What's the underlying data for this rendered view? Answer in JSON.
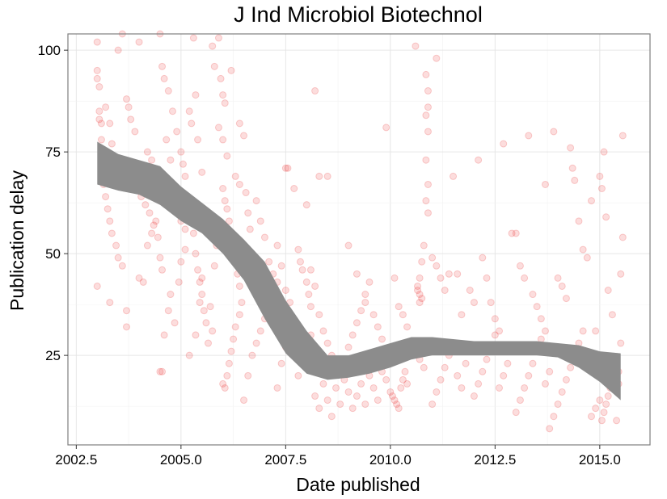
{
  "chart_data": {
    "type": "scatter",
    "title": "J Ind Microbiol Biotechnol",
    "xlabel": "Date published",
    "ylabel": "Publication delay",
    "xlim": [
      2002.3,
      2016.2
    ],
    "ylim": [
      3,
      104
    ],
    "x_ticks": [
      2002.5,
      2005.0,
      2007.5,
      2010.0,
      2012.5,
      2015.0
    ],
    "x_tick_labels": [
      "2002.5",
      "2005.0",
      "2007.5",
      "2010.0",
      "2012.5",
      "2015.0"
    ],
    "y_ticks": [
      25,
      50,
      75,
      100
    ],
    "y_tick_labels": [
      "25",
      "50",
      "75",
      "100"
    ],
    "grid": true,
    "colors": {
      "points": "#e8191b",
      "smooth_band": "#8c8c8c"
    },
    "point_alpha": 0.15,
    "points": [
      [
        2003.0,
        102
      ],
      [
        2003.0,
        95
      ],
      [
        2003.0,
        93
      ],
      [
        2003.05,
        91
      ],
      [
        2003.05,
        85
      ],
      [
        2003.05,
        83
      ],
      [
        2003.1,
        82
      ],
      [
        2003.1,
        78
      ],
      [
        2003.2,
        86
      ],
      [
        2003.3,
        82
      ],
      [
        2003.35,
        77
      ],
      [
        2003.4,
        71
      ],
      [
        2003.5,
        100
      ],
      [
        2003.6,
        104
      ],
      [
        2003.7,
        88
      ],
      [
        2003.75,
        86
      ],
      [
        2003.8,
        83
      ],
      [
        2003.9,
        80
      ],
      [
        2003.1,
        72
      ],
      [
        2003.15,
        67
      ],
      [
        2003.2,
        64
      ],
      [
        2003.25,
        61
      ],
      [
        2003.3,
        58
      ],
      [
        2003.35,
        55
      ],
      [
        2003.45,
        52
      ],
      [
        2003.5,
        49
      ],
      [
        2003.6,
        47
      ],
      [
        2003.0,
        42
      ],
      [
        2003.3,
        38
      ],
      [
        2003.7,
        36
      ],
      [
        2003.7,
        32
      ],
      [
        2004.0,
        44
      ],
      [
        2004.1,
        43
      ],
      [
        2004.2,
        52
      ],
      [
        2004.3,
        55
      ],
      [
        2004.4,
        58
      ],
      [
        2003.85,
        69
      ],
      [
        2003.95,
        66
      ],
      [
        2004.05,
        64
      ],
      [
        2004.15,
        62
      ],
      [
        2004.25,
        60
      ],
      [
        2004.35,
        57
      ],
      [
        2004.45,
        54
      ],
      [
        2004.5,
        49
      ],
      [
        2004.55,
        46
      ],
      [
        2004.0,
        102
      ],
      [
        2004.5,
        104
      ],
      [
        2004.55,
        96
      ],
      [
        2004.6,
        93
      ],
      [
        2004.7,
        90
      ],
      [
        2004.8,
        85
      ],
      [
        2004.9,
        80
      ],
      [
        2004.65,
        78
      ],
      [
        2004.75,
        73
      ],
      [
        2004.2,
        75
      ],
      [
        2004.3,
        73
      ],
      [
        2004.45,
        70
      ],
      [
        2004.6,
        68
      ],
      [
        2004.7,
        65
      ],
      [
        2004.8,
        63
      ],
      [
        2004.9,
        60
      ],
      [
        2005.0,
        58
      ],
      [
        2005.1,
        56
      ],
      [
        2004.5,
        21
      ],
      [
        2004.55,
        21
      ],
      [
        2004.6,
        30
      ],
      [
        2004.7,
        36
      ],
      [
        2004.75,
        40
      ],
      [
        2004.85,
        33
      ],
      [
        2004.95,
        43
      ],
      [
        2005.0,
        48
      ],
      [
        2005.1,
        51
      ],
      [
        2005.0,
        75
      ],
      [
        2005.05,
        72
      ],
      [
        2005.1,
        69
      ],
      [
        2005.2,
        85
      ],
      [
        2005.25,
        82
      ],
      [
        2005.3,
        103
      ],
      [
        2005.35,
        89
      ],
      [
        2005.4,
        78
      ],
      [
        2005.5,
        70
      ],
      [
        2005.2,
        62
      ],
      [
        2005.3,
        55
      ],
      [
        2005.35,
        50
      ],
      [
        2005.4,
        46
      ],
      [
        2005.45,
        43
      ],
      [
        2005.5,
        40
      ],
      [
        2005.55,
        36
      ],
      [
        2005.6,
        33
      ],
      [
        2005.65,
        28
      ],
      [
        2005.2,
        25
      ],
      [
        2005.35,
        30
      ],
      [
        2005.45,
        38
      ],
      [
        2005.5,
        44
      ],
      [
        2005.7,
        37
      ],
      [
        2005.75,
        31
      ],
      [
        2005.8,
        47
      ],
      [
        2005.85,
        52
      ],
      [
        2005.9,
        57
      ],
      [
        2005.75,
        101
      ],
      [
        2005.8,
        96
      ],
      [
        2005.9,
        103
      ],
      [
        2005.95,
        93
      ],
      [
        2006.0,
        89
      ],
      [
        2006.05,
        87
      ],
      [
        2005.9,
        81
      ],
      [
        2006.0,
        78
      ],
      [
        2006.1,
        74
      ],
      [
        2006.0,
        66
      ],
      [
        2006.05,
        63
      ],
      [
        2006.1,
        61
      ],
      [
        2006.15,
        58
      ],
      [
        2006.2,
        55
      ],
      [
        2006.25,
        52
      ],
      [
        2006.3,
        48
      ],
      [
        2006.35,
        45
      ],
      [
        2006.4,
        42
      ],
      [
        2006.0,
        18
      ],
      [
        2006.05,
        17
      ],
      [
        2006.1,
        20
      ],
      [
        2006.15,
        23
      ],
      [
        2006.2,
        26
      ],
      [
        2006.25,
        29
      ],
      [
        2006.3,
        32
      ],
      [
        2006.4,
        35
      ],
      [
        2006.45,
        38
      ],
      [
        2006.2,
        95
      ],
      [
        2006.4,
        82
      ],
      [
        2006.5,
        79
      ],
      [
        2006.3,
        69
      ],
      [
        2006.4,
        67
      ],
      [
        2006.55,
        65
      ],
      [
        2006.6,
        60
      ],
      [
        2006.65,
        56
      ],
      [
        2006.7,
        50
      ],
      [
        2006.5,
        14
      ],
      [
        2006.6,
        20
      ],
      [
        2006.7,
        25
      ],
      [
        2006.8,
        28
      ],
      [
        2006.9,
        31
      ],
      [
        2007.0,
        34
      ],
      [
        2007.1,
        37
      ],
      [
        2007.2,
        40
      ],
      [
        2007.3,
        43
      ],
      [
        2006.8,
        63
      ],
      [
        2006.9,
        58
      ],
      [
        2007.0,
        54
      ],
      [
        2007.1,
        48
      ],
      [
        2007.2,
        45
      ],
      [
        2007.3,
        52
      ],
      [
        2007.4,
        47
      ],
      [
        2007.5,
        41
      ],
      [
        2007.6,
        38
      ],
      [
        2007.5,
        71
      ],
      [
        2007.55,
        71
      ],
      [
        2007.7,
        66
      ],
      [
        2007.8,
        51
      ],
      [
        2007.85,
        48
      ],
      [
        2007.9,
        46
      ],
      [
        2008.0,
        43
      ],
      [
        2008.05,
        40
      ],
      [
        2008.1,
        37
      ],
      [
        2007.3,
        17
      ],
      [
        2007.4,
        23
      ],
      [
        2007.5,
        27
      ],
      [
        2007.6,
        30
      ],
      [
        2007.7,
        33
      ],
      [
        2007.8,
        20
      ],
      [
        2007.9,
        24
      ],
      [
        2008.0,
        27
      ],
      [
        2008.1,
        30
      ],
      [
        2008.0,
        62
      ],
      [
        2008.2,
        90
      ],
      [
        2008.3,
        69
      ],
      [
        2008.1,
        46
      ],
      [
        2008.2,
        42
      ],
      [
        2008.3,
        35
      ],
      [
        2008.4,
        31
      ],
      [
        2008.5,
        28
      ],
      [
        2008.6,
        25
      ],
      [
        2008.2,
        15
      ],
      [
        2008.3,
        12
      ],
      [
        2008.4,
        18
      ],
      [
        2008.5,
        14
      ],
      [
        2008.6,
        10
      ],
      [
        2008.7,
        17
      ],
      [
        2008.8,
        13
      ],
      [
        2008.9,
        19
      ],
      [
        2009.0,
        16
      ],
      [
        2008.5,
        69
      ],
      [
        2008.8,
        22
      ],
      [
        2008.8,
        21
      ],
      [
        2008.9,
        24
      ],
      [
        2009.0,
        27
      ],
      [
        2009.1,
        30
      ],
      [
        2009.2,
        33
      ],
      [
        2009.3,
        36
      ],
      [
        2009.4,
        38
      ],
      [
        2009.0,
        52
      ],
      [
        2009.2,
        45
      ],
      [
        2009.4,
        40
      ],
      [
        2009.5,
        43
      ],
      [
        2009.6,
        35
      ],
      [
        2009.7,
        32
      ],
      [
        2009.8,
        29
      ],
      [
        2009.9,
        26
      ],
      [
        2010.0,
        23
      ],
      [
        2009.1,
        12
      ],
      [
        2009.2,
        15
      ],
      [
        2009.3,
        18
      ],
      [
        2009.4,
        13
      ],
      [
        2009.5,
        20
      ],
      [
        2009.6,
        17
      ],
      [
        2009.7,
        14
      ],
      [
        2009.8,
        21
      ],
      [
        2009.9,
        19
      ],
      [
        2009.9,
        81
      ],
      [
        2010.1,
        44
      ],
      [
        2010.2,
        37
      ],
      [
        2010.3,
        35
      ],
      [
        2010.4,
        32
      ],
      [
        2010.5,
        28
      ],
      [
        2010.6,
        26
      ],
      [
        2010.7,
        24
      ],
      [
        2010.8,
        22
      ],
      [
        2010.0,
        16
      ],
      [
        2010.05,
        15
      ],
      [
        2010.1,
        14
      ],
      [
        2010.15,
        13
      ],
      [
        2010.2,
        12
      ],
      [
        2010.25,
        17
      ],
      [
        2010.3,
        19
      ],
      [
        2010.35,
        21
      ],
      [
        2010.4,
        18
      ],
      [
        2010.6,
        101
      ],
      [
        2010.65,
        41
      ],
      [
        2010.7,
        40
      ],
      [
        2010.75,
        39
      ],
      [
        2010.65,
        42
      ],
      [
        2010.7,
        38
      ],
      [
        2010.7,
        44
      ],
      [
        2010.75,
        48
      ],
      [
        2010.8,
        52
      ],
      [
        2010.85,
        94
      ],
      [
        2010.9,
        90
      ],
      [
        2010.9,
        86
      ],
      [
        2010.85,
        84
      ],
      [
        2010.9,
        80
      ],
      [
        2010.85,
        73
      ],
      [
        2010.9,
        67
      ],
      [
        2010.85,
        63
      ],
      [
        2010.9,
        60
      ],
      [
        2011.1,
        98
      ],
      [
        2011.0,
        49
      ],
      [
        2011.1,
        47
      ],
      [
        2011.2,
        44
      ],
      [
        2011.3,
        41
      ],
      [
        2011.4,
        45
      ],
      [
        2011.5,
        69
      ],
      [
        2011.6,
        45
      ],
      [
        2011.7,
        35
      ],
      [
        2011.0,
        13
      ],
      [
        2011.1,
        16
      ],
      [
        2011.2,
        19
      ],
      [
        2011.3,
        22
      ],
      [
        2011.4,
        25
      ],
      [
        2011.5,
        28
      ],
      [
        2011.6,
        20
      ],
      [
        2011.7,
        17
      ],
      [
        2011.8,
        23
      ],
      [
        2011.9,
        41
      ],
      [
        2012.0,
        38
      ],
      [
        2012.1,
        73
      ],
      [
        2012.2,
        49
      ],
      [
        2012.3,
        44
      ],
      [
        2012.4,
        38
      ],
      [
        2012.5,
        34
      ],
      [
        2012.6,
        31
      ],
      [
        2012.7,
        77
      ],
      [
        2012.0,
        15
      ],
      [
        2012.1,
        18
      ],
      [
        2012.2,
        21
      ],
      [
        2012.3,
        24
      ],
      [
        2012.4,
        27
      ],
      [
        2012.5,
        30
      ],
      [
        2012.6,
        17
      ],
      [
        2012.7,
        20
      ],
      [
        2012.8,
        23
      ],
      [
        2012.9,
        55
      ],
      [
        2013.0,
        55
      ],
      [
        2013.1,
        47
      ],
      [
        2013.2,
        44
      ],
      [
        2013.3,
        79
      ],
      [
        2013.4,
        40
      ],
      [
        2013.5,
        37
      ],
      [
        2013.6,
        34
      ],
      [
        2013.7,
        31
      ],
      [
        2013.0,
        11
      ],
      [
        2013.1,
        14
      ],
      [
        2013.2,
        17
      ],
      [
        2013.3,
        20
      ],
      [
        2013.4,
        23
      ],
      [
        2013.5,
        26
      ],
      [
        2013.6,
        29
      ],
      [
        2013.7,
        18
      ],
      [
        2013.8,
        21
      ],
      [
        2013.7,
        67
      ],
      [
        2013.9,
        80
      ],
      [
        2014.0,
        44
      ],
      [
        2014.1,
        42
      ],
      [
        2014.2,
        39
      ],
      [
        2014.3,
        76
      ],
      [
        2014.35,
        71
      ],
      [
        2014.4,
        68
      ],
      [
        2014.5,
        58
      ],
      [
        2013.8,
        7
      ],
      [
        2013.9,
        10
      ],
      [
        2014.0,
        13
      ],
      [
        2014.1,
        16
      ],
      [
        2014.2,
        19
      ],
      [
        2014.3,
        22
      ],
      [
        2014.4,
        25
      ],
      [
        2014.5,
        28
      ],
      [
        2014.6,
        31
      ],
      [
        2014.6,
        51
      ],
      [
        2014.7,
        49
      ],
      [
        2014.8,
        63
      ],
      [
        2014.9,
        31
      ],
      [
        2015.0,
        69
      ],
      [
        2015.05,
        66
      ],
      [
        2015.1,
        75
      ],
      [
        2015.15,
        59
      ],
      [
        2015.2,
        41
      ],
      [
        2014.8,
        10
      ],
      [
        2014.9,
        12
      ],
      [
        2015.0,
        14
      ],
      [
        2015.05,
        9
      ],
      [
        2015.1,
        11
      ],
      [
        2015.15,
        13
      ],
      [
        2015.2,
        15
      ],
      [
        2015.25,
        17
      ],
      [
        2015.3,
        19
      ],
      [
        2015.3,
        35
      ],
      [
        2015.4,
        24
      ],
      [
        2015.45,
        21
      ],
      [
        2015.5,
        45
      ],
      [
        2015.55,
        54
      ],
      [
        2015.55,
        79
      ],
      [
        2015.5,
        28
      ],
      [
        2015.45,
        18
      ],
      [
        2015.4,
        9
      ]
    ],
    "smooth": {
      "x": [
        2003.0,
        2003.5,
        2004.0,
        2004.5,
        2005.0,
        2005.5,
        2006.0,
        2006.5,
        2007.0,
        2007.5,
        2008.0,
        2008.5,
        2009.0,
        2009.5,
        2010.0,
        2010.5,
        2011.0,
        2011.5,
        2012.0,
        2012.5,
        2013.0,
        2013.5,
        2014.0,
        2014.5,
        2015.0,
        2015.5
      ],
      "upper": [
        77.5,
        74.5,
        73.0,
        71.5,
        66.5,
        62.5,
        58.5,
        53.5,
        48.0,
        38.5,
        31.0,
        25.0,
        25.0,
        26.5,
        28.0,
        29.5,
        29.5,
        29.0,
        28.5,
        28.5,
        28.5,
        28.5,
        28.0,
        27.5,
        26.0,
        25.5
      ],
      "lower": [
        67.0,
        65.5,
        64.5,
        62.0,
        58.0,
        55.0,
        50.0,
        43.5,
        34.0,
        25.5,
        20.5,
        19.0,
        19.5,
        20.5,
        22.0,
        24.0,
        25.0,
        25.0,
        25.0,
        25.0,
        25.0,
        25.0,
        24.5,
        22.0,
        18.5,
        14.0
      ]
    }
  }
}
